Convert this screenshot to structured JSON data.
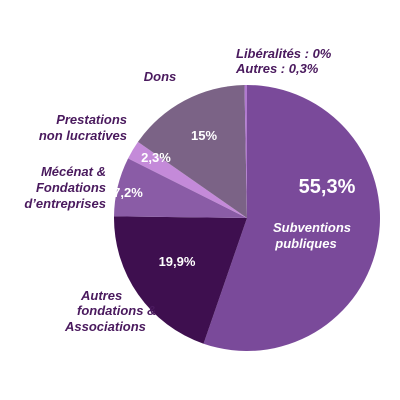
{
  "chart_data": {
    "type": "pie",
    "slices": [
      {
        "key": "subventions",
        "label_lines": [
          "Subventions",
          "publiques"
        ],
        "value": 55.3,
        "value_label": "55,3%",
        "color": "#7a4a9a"
      },
      {
        "key": "autres_fondations",
        "label_lines": [
          "Autres",
          "fondations &",
          "Associations"
        ],
        "value": 19.9,
        "value_label": "19,9%",
        "color": "#3e0f4f"
      },
      {
        "key": "mecenat",
        "label_lines": [
          "Mécénat &",
          "Fondations",
          "d’entreprises"
        ],
        "value": 7.2,
        "value_label": "7,2%",
        "color": "#8a5ca6"
      },
      {
        "key": "prestations",
        "label_lines": [
          "Prestations",
          "non lucratives"
        ],
        "value": 2.3,
        "value_label": "2,3%",
        "color": "#c48ad9"
      },
      {
        "key": "dons",
        "label_lines": [
          "Dons"
        ],
        "value": 15,
        "value_label": "15%",
        "color": "#7b6386"
      },
      {
        "key": "autres",
        "label_lines": [
          "Autres : 0,3%"
        ],
        "value": 0.3,
        "value_label": "",
        "color": "#b079cf"
      },
      {
        "key": "liberalites",
        "label_lines": [
          "Libéralités : 0%"
        ],
        "value": 0,
        "value_label": "",
        "color": "#b079cf"
      }
    ]
  }
}
